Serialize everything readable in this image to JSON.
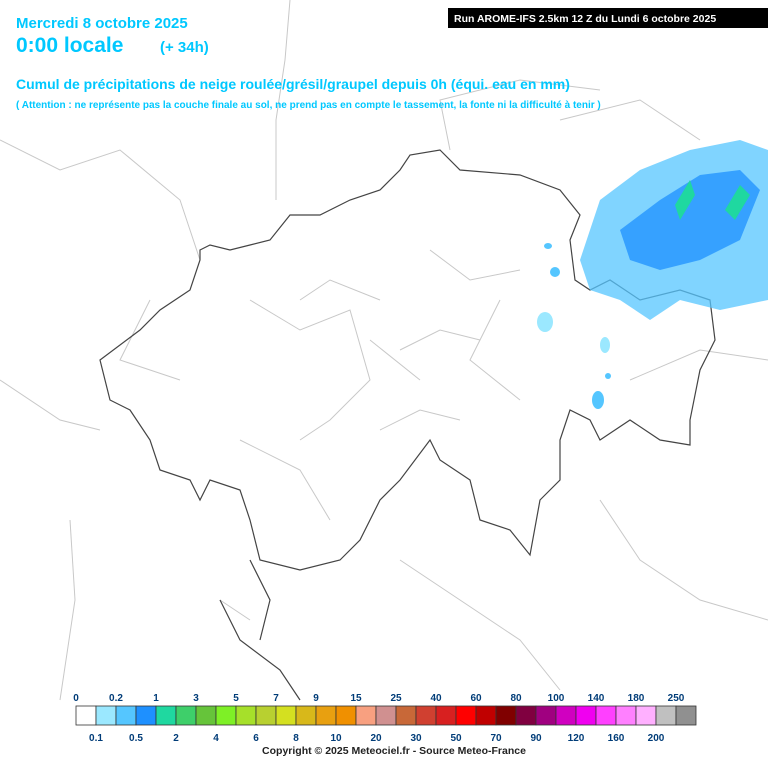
{
  "header": {
    "date": "Mercredi 8 octobre 2025",
    "time": "0:00 locale",
    "lead": "(+ 34h)",
    "run": "Run AROME-IFS 2.5km 12 Z du Lundi 6 octobre 2025",
    "title": "Cumul de précipitations de neige roulée/grésil/graupel depuis 0h (équi. eau en mm)",
    "note": "( Attention : ne représente pas la couche finale au sol, ne prend pas en compte le tassement, la fonte ni la difficulté à tenir )"
  },
  "legend": {
    "thresholds": [
      0,
      0.1,
      0.2,
      0.5,
      1,
      2,
      3,
      4,
      5,
      6,
      7,
      8,
      9,
      10,
      15,
      20,
      25,
      30,
      40,
      50,
      60,
      70,
      80,
      90,
      100,
      120,
      140,
      160,
      180,
      200,
      250
    ],
    "colors": [
      "#ffffff",
      "#9be8ff",
      "#55c6ff",
      "#1e90ff",
      "#1fd8a0",
      "#3ecf6a",
      "#66c43a",
      "#7ef026",
      "#a6e02a",
      "#b8d030",
      "#d4e020",
      "#d8b81a",
      "#e8a010",
      "#f09000",
      "#f8a080",
      "#d09090",
      "#c86838",
      "#d04030",
      "#d82020",
      "#ff0000",
      "#c00000",
      "#800000",
      "#800040",
      "#a00080",
      "#d000c0",
      "#f000f0",
      "#ff40ff",
      "#ff80ff",
      "#ffb0ff",
      "#c0c0c0",
      "#909090"
    ]
  },
  "footer": {
    "copyright": "Copyright © 2025 Meteociel.fr - Source Meteo-France"
  }
}
